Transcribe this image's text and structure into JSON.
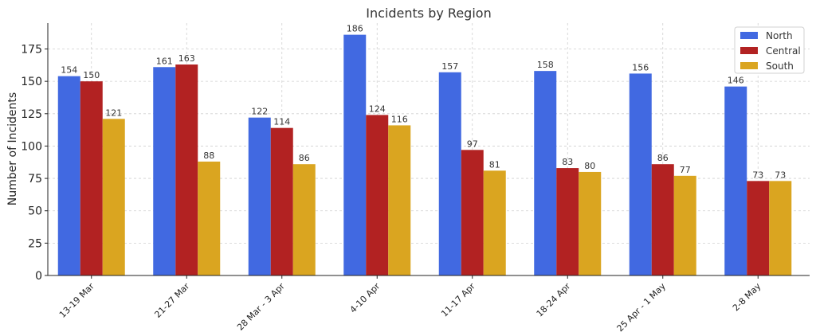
{
  "chart_data": {
    "type": "bar",
    "title": "Incidents by Region",
    "xlabel": "",
    "ylabel": "Number of Incidents",
    "ylim": [
      0,
      195
    ],
    "yticks": [
      0,
      25,
      50,
      75,
      100,
      125,
      150,
      175
    ],
    "grid": true,
    "legend_position": "top-right",
    "categories": [
      "13-19 Mar",
      "21-27 Mar",
      "28 Mar - 3 Apr",
      "4-10 Apr",
      "11-17 Apr",
      "18-24 Apr",
      "25 Apr - 1 May",
      "2-8 May"
    ],
    "series": [
      {
        "name": "North",
        "color": "#4169E1",
        "values": [
          154,
          161,
          122,
          186,
          157,
          158,
          156,
          146
        ]
      },
      {
        "name": "Central",
        "color": "#B22222",
        "values": [
          150,
          163,
          114,
          124,
          97,
          83,
          86,
          73
        ]
      },
      {
        "name": "South",
        "color": "#DAA520",
        "values": [
          121,
          88,
          86,
          116,
          81,
          80,
          77,
          73
        ]
      }
    ]
  }
}
